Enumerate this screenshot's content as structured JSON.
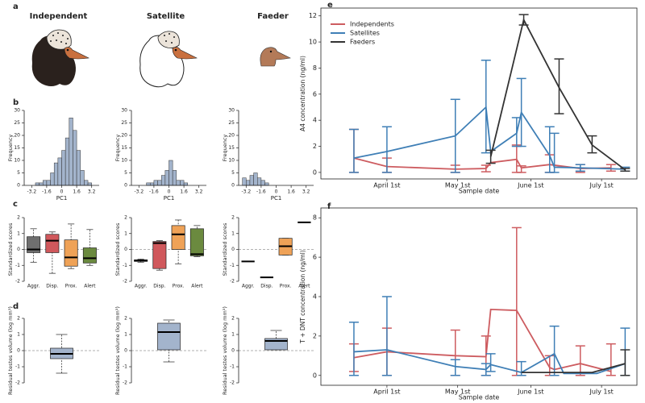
{
  "figure": {
    "panel_labels": [
      "a",
      "b",
      "c",
      "d",
      "e",
      "f"
    ],
    "column_titles": [
      "Independent",
      "Satellite",
      "Faeder"
    ]
  },
  "chart_data": [
    {
      "type": "histogram",
      "xlabel": "PC1",
      "ylabel": "Frequency",
      "color": "#a3b4cc",
      "bins": [
        -2.8,
        -2.4,
        -2.0,
        -1.6,
        -1.2,
        -0.8,
        -0.4,
        0,
        0.4,
        0.8,
        1.2,
        1.6,
        2.0,
        2.4,
        2.8,
        3.2
      ],
      "counts": [
        1,
        1,
        2,
        2,
        5,
        9,
        11,
        14,
        19,
        27,
        22,
        14,
        6,
        2,
        1
      ],
      "xlim": [
        -4,
        4
      ],
      "xticks": [
        -3.2,
        -1.6,
        0,
        1.6,
        3.2
      ],
      "ylim": [
        0,
        30
      ],
      "yticks": [
        0,
        5,
        10,
        15,
        20,
        25,
        30
      ]
    },
    {
      "type": "histogram",
      "xlabel": "PC1",
      "ylabel": "Frequency",
      "color": "#a3b4cc",
      "bins": [
        -2.4,
        -2.0,
        -1.6,
        -1.2,
        -0.8,
        -0.4,
        0,
        0.4,
        0.8,
        1.2,
        1.6,
        2.0
      ],
      "counts": [
        1,
        1,
        2,
        2,
        4,
        6,
        10,
        6,
        2,
        2,
        1
      ],
      "xlim": [
        -4,
        4
      ],
      "xticks": [
        -3.2,
        -1.6,
        0,
        1.6,
        3.2
      ],
      "ylim": [
        0,
        30
      ],
      "yticks": [
        0,
        5,
        10,
        15,
        20,
        25,
        30
      ]
    },
    {
      "type": "histogram",
      "xlabel": "PC1",
      "ylabel": "Frequency",
      "color": "#a3b4cc",
      "bins": [
        -3.6,
        -3.2,
        -2.8,
        -2.4,
        -2.0,
        -1.6,
        -1.2,
        -0.8
      ],
      "counts": [
        3,
        2,
        4,
        5,
        3,
        2,
        1
      ],
      "xlim": [
        -4,
        4
      ],
      "xticks": [
        -3.2,
        -1.6,
        0,
        1.6,
        3.2
      ],
      "ylim": [
        0,
        30
      ],
      "yticks": [
        0,
        5,
        10,
        15,
        20,
        25,
        30
      ]
    },
    {
      "type": "box",
      "ylabel": "Standardized scores",
      "categories": [
        "Aggr.",
        "Disp.",
        "Prox.",
        "Alert"
      ],
      "colors": [
        "#6f6f6f",
        "#d0585c",
        "#efa257",
        "#6b8a3f"
      ],
      "hline": 0,
      "boxes": [
        {
          "min": -0.8,
          "q1": -0.2,
          "median": 0.0,
          "q3": 0.8,
          "max": 1.3
        },
        {
          "min": -1.5,
          "q1": -0.2,
          "median": 0.55,
          "q3": 0.95,
          "max": 1.1
        },
        {
          "min": -1.2,
          "q1": -1.05,
          "median": -0.5,
          "q3": 0.6,
          "max": 1.6
        },
        {
          "min": -1.0,
          "q1": -0.85,
          "median": -0.55,
          "q3": 0.1,
          "max": 1.25
        }
      ],
      "ylim": [
        -2,
        2
      ],
      "yticks": [
        -2,
        -1,
        0,
        1,
        2
      ]
    },
    {
      "type": "box",
      "ylabel": "Standardized scores",
      "categories": [
        "Aggr.",
        "Disp.",
        "Prox.",
        "Alert"
      ],
      "colors": [
        "#6f6f6f",
        "#d0585c",
        "#efa257",
        "#6b8a3f"
      ],
      "hline": 0,
      "boxes": [
        {
          "min": -0.8,
          "q1": -0.75,
          "median": -0.7,
          "q3": -0.65,
          "max": -0.6
        },
        {
          "min": -1.3,
          "q1": -1.2,
          "median": 0.4,
          "q3": 0.5,
          "max": 0.55
        },
        {
          "min": -0.9,
          "q1": 0.0,
          "median": 0.95,
          "q3": 1.5,
          "max": 1.85
        },
        {
          "min": -0.45,
          "q1": -0.4,
          "median": -0.3,
          "q3": 1.3,
          "max": 1.5
        }
      ],
      "ylim": [
        -2,
        2
      ],
      "yticks": [
        -2,
        -1,
        0,
        1,
        2
      ]
    },
    {
      "type": "box",
      "ylabel": "Standardized scores",
      "categories": [
        "Aggr.",
        "Disp.",
        "Prox.",
        "Alert"
      ],
      "colors": [
        "#6f6f6f",
        "#d0585c",
        "#efa257",
        "#6b8a3f"
      ],
      "hline": 0,
      "boxes": [
        {
          "min": -0.75,
          "q1": -0.75,
          "median": -0.75,
          "q3": -0.75,
          "max": -0.75
        },
        {
          "min": -1.75,
          "q1": -1.75,
          "median": -1.75,
          "q3": -1.75,
          "max": -1.75
        },
        {
          "min": -0.35,
          "q1": -0.35,
          "median": 0.2,
          "q3": 0.7,
          "max": 0.7
        },
        {
          "min": 1.7,
          "q1": 1.7,
          "median": 1.7,
          "q3": 1.7,
          "max": 1.7
        }
      ],
      "ylim": [
        -2,
        2
      ],
      "yticks": [
        -2,
        -1,
        0,
        1,
        2
      ]
    },
    {
      "type": "box",
      "ylabel": "Residual testes volume (log mm³)",
      "colors": [
        "#a3b4cc"
      ],
      "hline": 0,
      "boxes": [
        {
          "min": -1.4,
          "q1": -0.5,
          "median": -0.2,
          "q3": 0.15,
          "max": 1.0
        }
      ],
      "ylim": [
        -2,
        2
      ],
      "yticks": [
        -2,
        -1,
        0,
        1,
        2
      ]
    },
    {
      "type": "box",
      "ylabel": "Residual testes volume (log mm³)",
      "colors": [
        "#a3b4cc"
      ],
      "hline": 0,
      "boxes": [
        {
          "min": -0.7,
          "q1": 0.05,
          "median": 1.15,
          "q3": 1.7,
          "max": 1.9
        }
      ],
      "ylim": [
        -2,
        2
      ],
      "yticks": [
        -2,
        -1,
        0,
        1,
        2
      ]
    },
    {
      "type": "box",
      "ylabel": "Residual testes volume (log mm³)",
      "colors": [
        "#a3b4cc"
      ],
      "hline": 0,
      "boxes": [
        {
          "min": 0.05,
          "q1": 0.05,
          "median": 0.6,
          "q3": 0.75,
          "max": 1.25
        }
      ],
      "ylim": [
        -2,
        2
      ],
      "yticks": [
        -2,
        -1,
        0,
        1,
        2
      ]
    },
    {
      "type": "line",
      "xlabel": "Sample date",
      "ylabel": "A4 concentration (ng/ml)",
      "legend": "upper left",
      "xlim": [
        3,
        137
      ],
      "xticks": [
        {
          "value": 31,
          "label": "April 1st"
        },
        {
          "value": 61,
          "label": "May 1st"
        },
        {
          "value": 92,
          "label": "June 1st"
        },
        {
          "value": 122,
          "label": "July 1st"
        }
      ],
      "ylim": [
        -0.5,
        12.6
      ],
      "yticks": [
        0,
        2,
        4,
        6,
        8,
        10,
        12
      ],
      "series": [
        {
          "name": "Independents",
          "color": "#cd5c60",
          "x": [
            17,
            31,
            60,
            73,
            75,
            86,
            88,
            100,
            113,
            126
          ],
          "values": [
            1.1,
            0.45,
            0.25,
            0.3,
            0.75,
            1.0,
            0.35,
            0.6,
            0.3,
            0.35
          ],
          "lower": [
            0,
            0,
            0,
            0.05,
            null,
            0,
            0,
            0,
            0,
            0.1
          ],
          "upper": [
            3.3,
            1.1,
            0.55,
            0.55,
            null,
            2.1,
            0.5,
            1.35,
            0.6,
            0.6
          ]
        },
        {
          "name": "Satellites",
          "color": "#3f7fb6",
          "x": [
            17,
            31,
            60,
            73,
            75,
            86,
            88,
            100,
            102,
            113,
            132
          ],
          "values": [
            1.1,
            1.6,
            2.8,
            5.0,
            1.6,
            3.0,
            4.6,
            1.3,
            0.4,
            0.35,
            0.25
          ],
          "lower": [
            0,
            0,
            0,
            1.5,
            null,
            2.0,
            2.0,
            0,
            0,
            0.1,
            0.1
          ],
          "upper": [
            3.3,
            3.5,
            5.6,
            8.6,
            null,
            4.2,
            7.2,
            3.5,
            3.0,
            0.6,
            0.4
          ]
        },
        {
          "name": "Faeders",
          "color": "#333333",
          "x": [
            75,
            89,
            104,
            118,
            132
          ],
          "values": [
            1.2,
            11.7,
            6.5,
            2.1,
            0.2
          ],
          "lower": [
            0.7,
            11.3,
            4.5,
            1.5,
            0.1
          ],
          "upper": [
            1.7,
            12.1,
            8.7,
            2.8,
            0.3
          ]
        }
      ]
    },
    {
      "type": "line",
      "xlabel": "Sample date",
      "ylabel": "T + DNT concentration (ng/ml)",
      "xlim": [
        3,
        137
      ],
      "xticks": [
        {
          "value": 31,
          "label": "April 1st"
        },
        {
          "value": 61,
          "label": "May 1st"
        },
        {
          "value": 92,
          "label": "June 1st"
        },
        {
          "value": 122,
          "label": "July 1st"
        }
      ],
      "ylim": [
        -0.5,
        8.5
      ],
      "yticks": [
        0,
        2,
        4,
        6,
        8
      ],
      "series": [
        {
          "color": "#cd5c60",
          "x": [
            17,
            31,
            60,
            73,
            75,
            86,
            100,
            102,
            113,
            126
          ],
          "values": [
            0.9,
            1.2,
            1.0,
            0.95,
            3.35,
            3.3,
            0.4,
            0.3,
            0.6,
            0.2
          ],
          "lower": [
            0.2,
            0,
            0,
            0,
            null,
            0,
            0,
            null,
            0,
            0
          ],
          "upper": [
            1.6,
            2.4,
            2.3,
            2.0,
            null,
            7.5,
            1.0,
            null,
            1.5,
            1.6
          ]
        },
        {
          "color": "#3f7fb6",
          "x": [
            17,
            31,
            60,
            73,
            75,
            88,
            102,
            106,
            120,
            132
          ],
          "values": [
            1.2,
            1.3,
            0.45,
            0.3,
            0.55,
            0.15,
            1.1,
            0.1,
            0.1,
            0.6
          ],
          "lower": [
            0,
            0,
            0,
            0,
            0.2,
            0,
            0,
            null,
            null,
            0
          ],
          "upper": [
            2.7,
            4.0,
            0.8,
            0.6,
            1.1,
            0.7,
            2.5,
            null,
            null,
            2.4
          ]
        },
        {
          "color": "#333333",
          "x": [
            88,
            100,
            118,
            132
          ],
          "values": [
            0.15,
            0.15,
            0.15,
            0.6
          ],
          "lower": [
            null,
            null,
            null,
            0
          ],
          "upper": [
            null,
            null,
            null,
            1.3
          ]
        }
      ]
    }
  ]
}
